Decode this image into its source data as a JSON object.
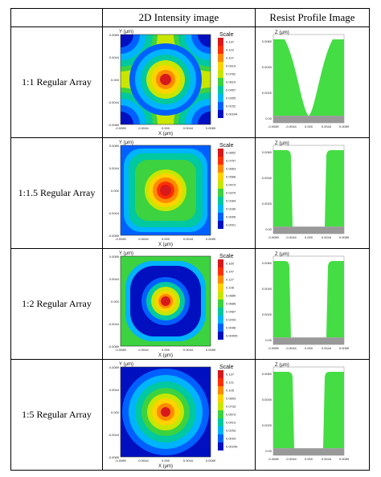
{
  "table": {
    "col_empty": "",
    "col_intensity": "2D Intensity image",
    "col_profile": "Resist Profile Image"
  },
  "colors": {
    "scale": [
      "#d7191c",
      "#ff3000",
      "#ff8a00",
      "#ffd200",
      "#c8e600",
      "#3cd240",
      "#00c8a0",
      "#00b4ff",
      "#0060ff",
      "#0010c0"
    ],
    "resist": "#44dd44",
    "substrate": "#999999"
  },
  "intensity_axes": {
    "x_label": "X (μm)",
    "y_label": "Y (μm)",
    "scale_label": "Scale"
  },
  "profile_axes": {
    "z_label": "Z (μm)"
  },
  "rows": [
    {
      "label": "1:1 Regular Array",
      "scale_values": [
        "0.137",
        "0.122",
        "0.107",
        "0.0914",
        "0.0762",
        "0.0610",
        "0.0457",
        "0.0305",
        "0.0152",
        "0.00244"
      ],
      "x_ticks": [
        "-0.0089",
        "-0.0044",
        "0.000",
        "0.0044",
        "0.0089"
      ],
      "y_ticks": [
        "0.0089",
        "0.0044",
        "0.000",
        "-0.0044",
        "-0.0089"
      ],
      "z_ticks": [
        "0.0060",
        "0.0040",
        "0.0020",
        "0.00"
      ],
      "px_ticks": [
        "-0.0089",
        "-0.0044",
        "0.000",
        "0.0044",
        "0.0089"
      ]
    },
    {
      "label": "1:1.5 Regular Array",
      "scale_values": [
        "0.0852",
        "0.0757",
        "0.0663",
        "0.0568",
        "0.0473",
        "0.0379",
        "0.0284",
        "0.0189",
        "0.0095",
        "0.0001"
      ],
      "x_ticks": [
        "-0.0089",
        "-0.0044",
        "0.000",
        "0.0044",
        "0.0089"
      ],
      "y_ticks": [
        "0.0089",
        "0.0044",
        "0.000",
        "-0.0044",
        "-0.0089"
      ],
      "z_ticks": [
        "0.0060",
        "0.0040",
        "0.0020",
        "0.00"
      ],
      "px_ticks": [
        "-0.0089",
        "-0.0044",
        "0.000",
        "0.0044",
        "0.0089"
      ]
    },
    {
      "label": "1:2 Regular Array",
      "scale_values": [
        "0.160",
        "0.147",
        "0.127",
        "0.108",
        "0.0880",
        "0.0685",
        "0.0487",
        "0.0293",
        "0.0098",
        "0.00005"
      ],
      "x_ticks": [
        "-0.0089",
        "-0.0044",
        "0.000",
        "0.0044",
        "0.0089"
      ],
      "y_ticks": [
        "0.0089",
        "0.0044",
        "0.000",
        "-0.0044",
        "-0.0089"
      ],
      "z_ticks": [
        "0.0060",
        "0.0040",
        "0.0020",
        "0.00"
      ],
      "px_ticks": [
        "-0.0089",
        "-0.0044",
        "0.000",
        "0.0044",
        "0.0089"
      ]
    },
    {
      "label": "1:5 Regular Array",
      "scale_values": [
        "0.137",
        "0.121",
        "0.105",
        "0.0893",
        "0.0733",
        "0.0573",
        "0.0413",
        "0.0253",
        "0.0093",
        "0.00246"
      ],
      "x_ticks": [
        "-0.0089",
        "-0.0044",
        "0.000",
        "0.0044",
        "0.0089"
      ],
      "y_ticks": [
        "0.0089",
        "0.0044",
        "0.000",
        "-0.0044",
        "-0.0089"
      ],
      "z_ticks": [
        "0.0060",
        "0.0040",
        "0.0020",
        "0.00"
      ],
      "px_ticks": [
        "-0.0089",
        "-0.0044",
        "0.000",
        "0.0044",
        "0.0089"
      ]
    }
  ]
}
